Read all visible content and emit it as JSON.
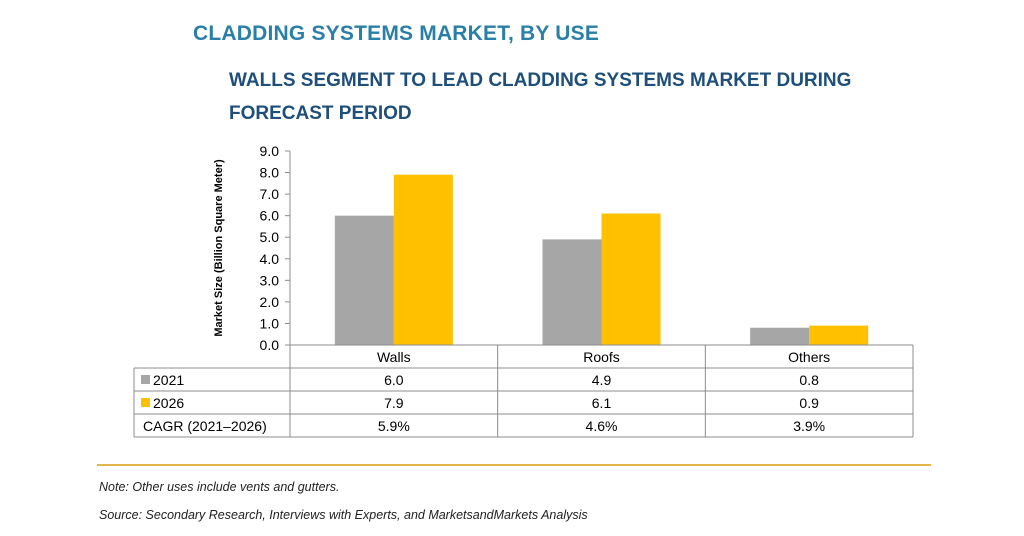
{
  "title": "CLADDING SYSTEMS MARKET, BY USE",
  "subtitle": "WALLS SEGMENT TO LEAD CLADDING SYSTEMS MARKET DURING FORECAST PERIOD",
  "note": "Note: Other uses include vents and gutters.",
  "source": "Source: Secondary Research, Interviews with Experts, and MarketsandMarkets Analysis",
  "chart_data": {
    "type": "bar",
    "ylabel": "Market Size (Billion Square Meter)",
    "ylim": [
      0,
      9
    ],
    "y_ticks": [
      "0.0",
      "1.0",
      "2.0",
      "3.0",
      "4.0",
      "5.0",
      "6.0",
      "7.0",
      "8.0",
      "9.0"
    ],
    "categories": [
      "Walls",
      "Roofs",
      "Others"
    ],
    "series": [
      {
        "name": "2021",
        "color": "#a6a6a6",
        "values": [
          6.0,
          4.9,
          0.8
        ],
        "labels": [
          "6.0",
          "4.9",
          "0.8"
        ]
      },
      {
        "name": "2026",
        "color": "#ffc000",
        "values": [
          7.9,
          6.1,
          0.9
        ],
        "labels": [
          "7.9",
          "6.1",
          "0.9"
        ]
      }
    ],
    "cagr_row": {
      "label": "CAGR (2021–2026)",
      "values": [
        "5.9%",
        "4.6%",
        "3.9%"
      ]
    },
    "grid": false,
    "legend": "table-left"
  }
}
